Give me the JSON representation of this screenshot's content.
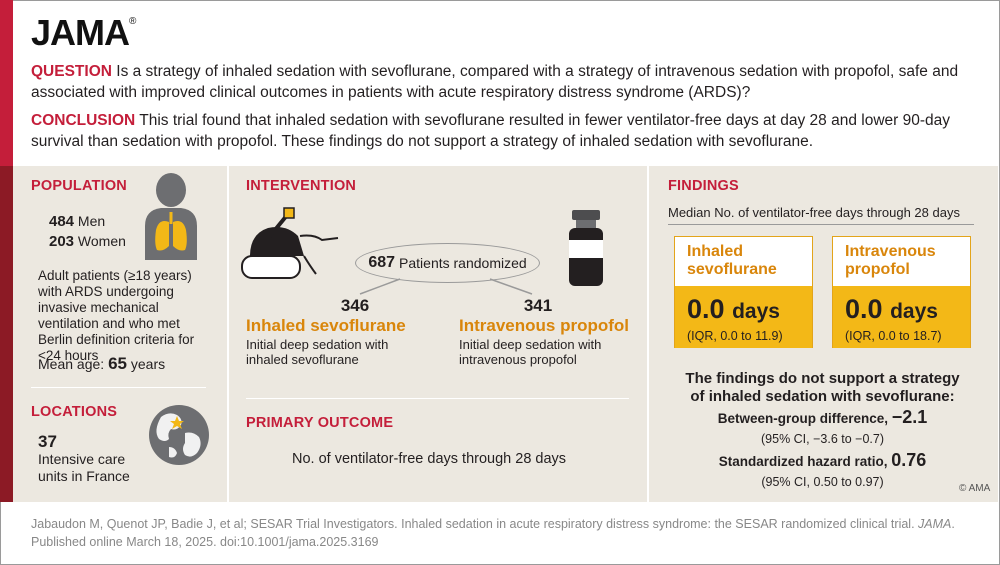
{
  "logo": {
    "text": "JAMA",
    "mark": "®"
  },
  "question": {
    "label": "QUESTION",
    "text": " Is a strategy of inhaled sedation with sevoflurane, compared with a strategy of intravenous sedation with propofol, safe and associated with improved clinical outcomes in patients with acute respiratory distress syndrome (ARDS)?"
  },
  "conclusion": {
    "label": "CONCLUSION",
    "text": " This trial found that inhaled sedation with sevoflurane resulted in fewer ventilator-free days at day 28 and lower 90-day survival than sedation with propofol. These findings do not support a strategy of inhaled sedation with sevoflurane."
  },
  "population": {
    "title": "POPULATION",
    "men_count": "484",
    "men_label": "Men",
    "women_count": "203",
    "women_label": "Women",
    "description": "Adult patients (≥18 years) with ARDS undergoing invasive mechanical ventilation and who met Berlin definition criteria for <24 hours",
    "age_label": "Mean age:",
    "age_value": "65",
    "age_unit": "years",
    "icon": "person-lungs-icon"
  },
  "locations": {
    "title": "LOCATIONS",
    "count": "37",
    "description": "Intensive care units in France",
    "icon": "globe-icon"
  },
  "intervention": {
    "title": "INTERVENTION",
    "randomized_count": "687",
    "randomized_label": "Patients randomized",
    "arm1": {
      "count": "346",
      "name": "Inhaled sevoflurane",
      "description": "Initial deep sedation with inhaled sevoflurane"
    },
    "arm2": {
      "count": "341",
      "name": "Intravenous propofol",
      "description": "Initial deep sedation with intravenous propofol"
    },
    "icons": [
      "inhalation-device-icon",
      "vial-icon"
    ]
  },
  "primary_outcome": {
    "title": "PRIMARY OUTCOME",
    "text": "No. of ventilator-free days through 28 days"
  },
  "findings": {
    "title": "FINDINGS",
    "subtitle": "Median No. of ventilator-free days through 28 days",
    "box1": {
      "label": "Inhaled sevoflurane",
      "value": "0.0",
      "unit": "days",
      "iqr": "(IQR, 0.0 to 11.9)"
    },
    "box2": {
      "label": "Intravenous propofol",
      "value": "0.0",
      "unit": "days",
      "iqr": "(IQR, 0.0 to 18.7)"
    },
    "statement": "The findings do not support a strategy of inhaled sedation with sevoflurane:",
    "diff_label": "Between-group difference,",
    "diff_value": "−2.1",
    "diff_ci": "(95% CI, −3.6 to −0.7)",
    "hr_label": "Standardized hazard ratio,",
    "hr_value": "0.76",
    "hr_ci": "(95% CI, 0.50 to 0.97)"
  },
  "credit": "© AMA",
  "citation": {
    "text": "Jabaudon M, Quenot JP, Badie J, et al; SESAR Trial Investigators. Inhaled sedation in acute respiratory distress syndrome: the SESAR randomized clinical trial. ",
    "journal": "JAMA",
    "text2": ". Published online March 18, 2025. doi:10.1001/jama.2025.3169"
  },
  "colors": {
    "accent_red": "#c41e3a",
    "dark_red": "#8c1a25",
    "orange": "#d9860b",
    "yellow": "#f3b817",
    "band": "#ece8e0"
  }
}
